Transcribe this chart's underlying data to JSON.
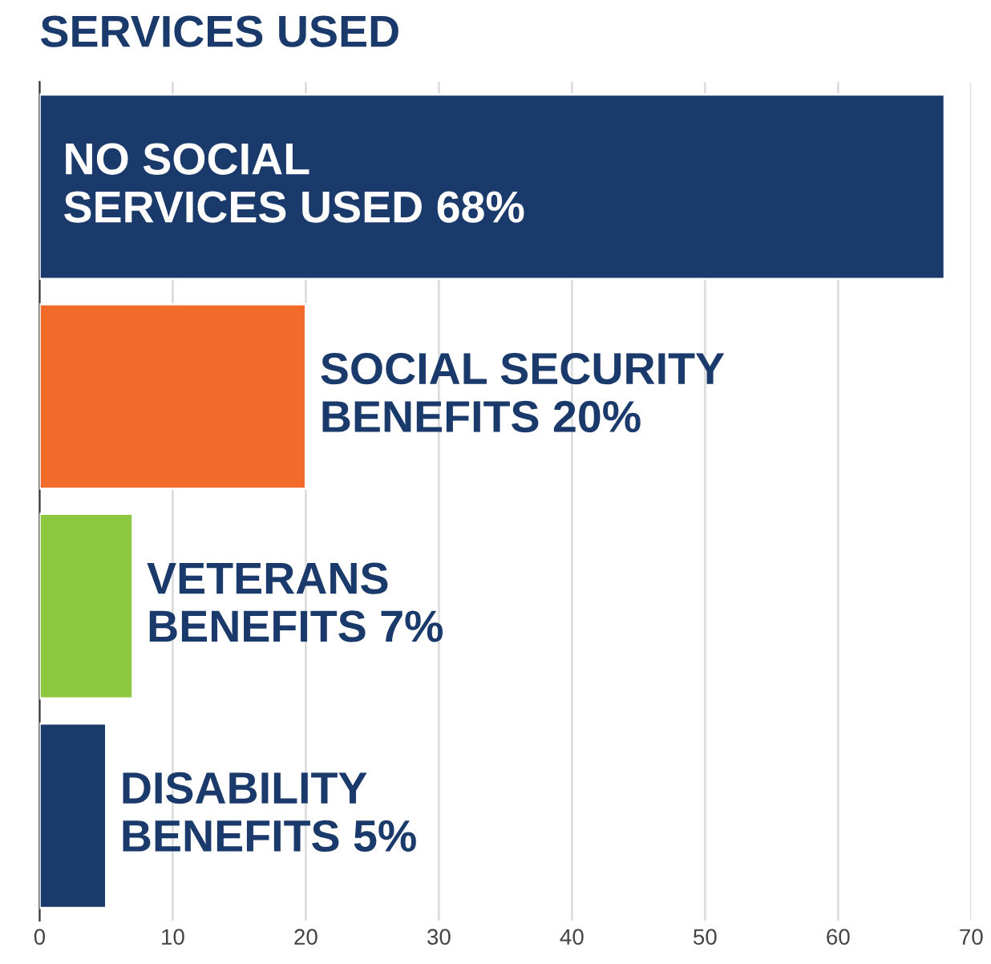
{
  "chart_data": {
    "type": "bar",
    "orientation": "horizontal",
    "title": "SERVICES USED",
    "categories": [
      "NO SOCIAL SERVICES USED",
      "SOCIAL SECURITY BENEFITS",
      "VETERANS BENEFITS",
      "DISABILITY BENEFITS"
    ],
    "values": [
      68,
      20,
      7,
      5
    ],
    "value_labels": [
      "68%",
      "20%",
      "7%",
      "5%"
    ],
    "colors": [
      "#1a3a6b",
      "#f26b2a",
      "#8dc63f",
      "#1a3a6b"
    ],
    "xlim": [
      0,
      70
    ],
    "xticks": [
      0,
      10,
      20,
      30,
      40,
      50,
      60,
      70
    ],
    "grid": "x",
    "tick_labels": "x"
  }
}
